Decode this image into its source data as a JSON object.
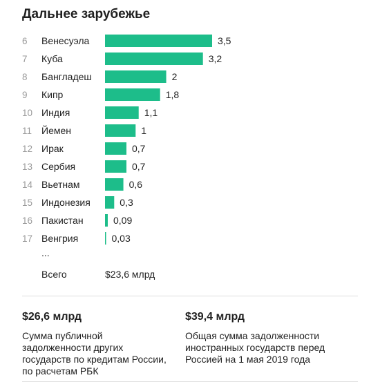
{
  "title": "Дальнее зарубежье",
  "chart_data": {
    "type": "bar",
    "orientation": "horizontal",
    "title": "Дальнее зарубежье",
    "ranks": [
      "6",
      "7",
      "8",
      "9",
      "10",
      "11",
      "12",
      "13",
      "14",
      "15",
      "16",
      "17"
    ],
    "categories": [
      "Венесуэла",
      "Куба",
      "Бангладеш",
      "Кипр",
      "Индия",
      "Йемен",
      "Ирак",
      "Сербия",
      "Вьетнам",
      "Индонезия",
      "Пакистан",
      "Венгрия"
    ],
    "values": [
      3.5,
      3.2,
      2,
      1.8,
      1.1,
      1,
      0.7,
      0.7,
      0.6,
      0.3,
      0.09,
      0.03
    ],
    "value_labels": [
      "3,5",
      "3,2",
      "2",
      "1,8",
      "1,1",
      "1",
      "0,7",
      "0,7",
      "0,6",
      "0,3",
      "0,09",
      "0,03"
    ],
    "bar_color": "#1dbd8a",
    "xlim": [
      0,
      3.5
    ],
    "grid": false,
    "ellipsis": "...",
    "total_label": "Всего",
    "total_value": "$23,6 млрд"
  },
  "summary": [
    {
      "value": "$26,6 млрд",
      "caption": "Сумма публичной задолженности других государств по кредитам России, по расчетам РБК"
    },
    {
      "value": "$39,4 млрд",
      "caption": "Общая сумма задолженности иностранных государств перед Россией на 1 мая 2019 года"
    }
  ]
}
